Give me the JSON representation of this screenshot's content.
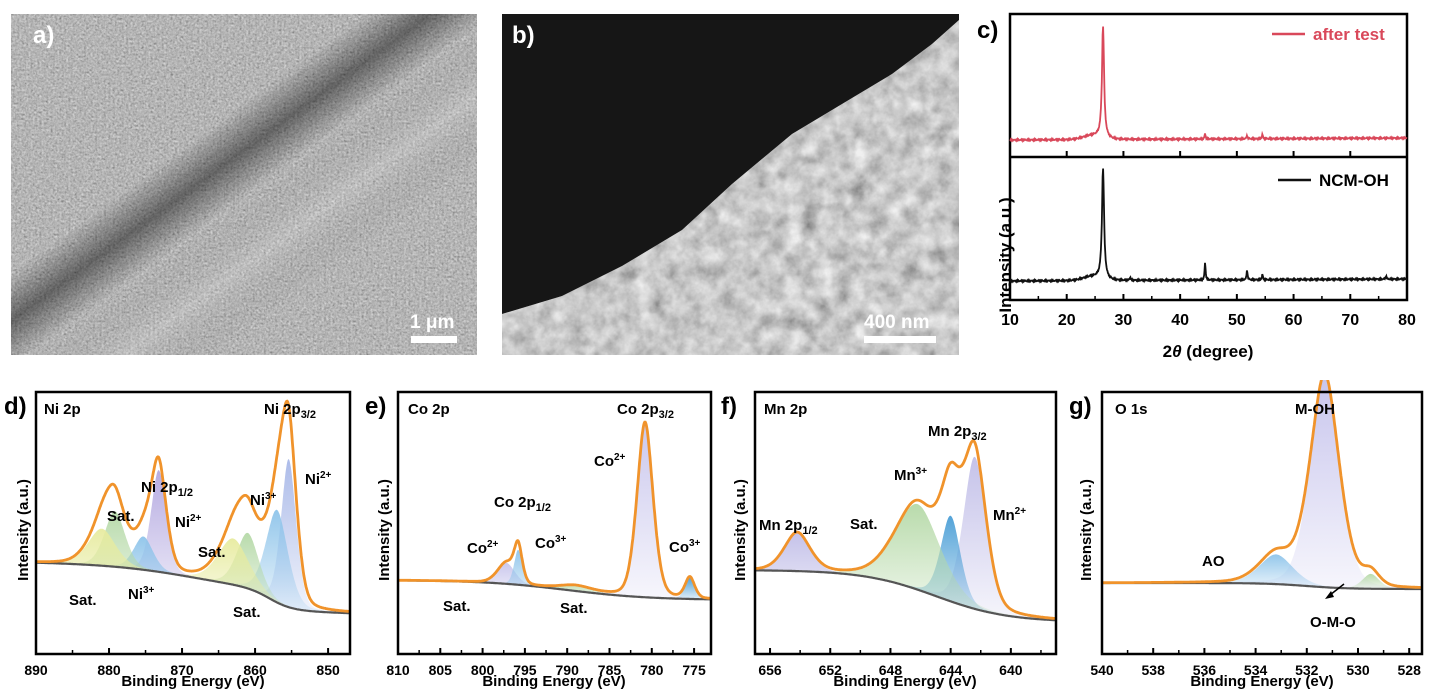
{
  "panels": {
    "a": {
      "label": "a)",
      "scale_label": "1 μm"
    },
    "b": {
      "label": "b)",
      "scale_label": "400 nm"
    },
    "c": {
      "label": "c)",
      "ylabel": "Intensity (a.u.)",
      "xlabel_prefix": "2",
      "xlabel_theta": "θ",
      "xlabel_suffix": " (degree)",
      "legend_top": "after test",
      "legend_bottom": "NCM-OH"
    },
    "d": {
      "label": "d)",
      "title": "Ni 2p",
      "xlabel": "Binding Energy (eV)",
      "ylabel": "Intensity (a.u.)"
    },
    "e": {
      "label": "e)",
      "title": "Co 2p",
      "xlabel": "Binding Energy (eV)",
      "ylabel": "Intensity (a.u.)"
    },
    "f": {
      "label": "f)",
      "title": "Mn 2p",
      "xlabel": "Binding Energy (eV)",
      "ylabel": "Intensity (a.u.)"
    },
    "g": {
      "label": "g)",
      "title": "O 1s",
      "xlabel": "Binding Energy (eV)",
      "ylabel": "Intensity (a.u.)"
    }
  },
  "colors": {
    "after_test": "#d9485a",
    "ncm_oh": "#111111",
    "envelope": "#f0932b",
    "background": "#555555"
  },
  "chart_data": [
    {
      "id": "c",
      "type": "line",
      "xlabel": "2θ (degree)",
      "ylabel": "Intensity (a.u.)",
      "xlim": [
        10,
        80
      ],
      "xticks": [
        10,
        20,
        30,
        40,
        50,
        60,
        70,
        80
      ],
      "series": [
        {
          "name": "after test",
          "peaks": [
            [
              26.4,
              1.0
            ],
            [
              44.4,
              0.05
            ],
            [
              51.8,
              0.03
            ],
            [
              54.5,
              0.04
            ]
          ]
        },
        {
          "name": "NCM-OH",
          "peaks": [
            [
              26.4,
              1.0
            ],
            [
              31.2,
              0.03
            ],
            [
              44.4,
              0.16
            ],
            [
              51.8,
              0.09
            ],
            [
              54.5,
              0.05
            ],
            [
              76.3,
              0.03
            ]
          ]
        }
      ]
    },
    {
      "id": "d",
      "type": "line",
      "title": "Ni 2p",
      "xlabel": "Binding Energy (eV)",
      "ylabel": "Intensity (a.u.)",
      "xlim": [
        890,
        847
      ],
      "xticks": [
        890,
        880,
        870,
        860,
        850
      ],
      "annotations": [
        "Ni 2p1/2",
        "Ni 2p3/2",
        "Ni2+",
        "Ni2+",
        "Ni3+",
        "Ni3+",
        "Sat.",
        "Sat.",
        "Sat.",
        "Sat."
      ],
      "series": [
        {
          "name": "Ni 2p3/2 Ni2+",
          "center": 855.4,
          "height": 0.8,
          "color": "#a8b8e8"
        },
        {
          "name": "Ni 2p3/2 Ni3+",
          "center": 857.0,
          "height": 0.5,
          "color": "#8ec4ea"
        },
        {
          "name": "Sat.",
          "center": 861.0,
          "height": 0.3,
          "color": "#b5d9a7"
        },
        {
          "name": "Sat.",
          "center": 863.0,
          "height": 0.25,
          "color": "#e7eb9f"
        },
        {
          "name": "Ni 2p1/2 Ni2+",
          "center": 873.2,
          "height": 0.55,
          "color": "#b3a8e0"
        },
        {
          "name": "Ni 2p1/2 Ni3+",
          "center": 875.3,
          "height": 0.18,
          "color": "#8ec4ea"
        },
        {
          "name": "Sat.",
          "center": 879.2,
          "height": 0.3,
          "color": "#b5d9a7"
        },
        {
          "name": "Sat.",
          "center": 881.0,
          "height": 0.2,
          "color": "#e7eb9f"
        }
      ]
    },
    {
      "id": "e",
      "type": "line",
      "title": "Co 2p",
      "xlabel": "Binding Energy (eV)",
      "ylabel": "Intensity (a.u.)",
      "xlim": [
        810,
        773
      ],
      "xticks": [
        810,
        805,
        800,
        795,
        790,
        785,
        780,
        775
      ],
      "annotations": [
        "Co 2p3/2",
        "Co 2p1/2",
        "Co2+",
        "Co2+",
        "Co3+",
        "Co3+",
        "Sat.",
        "Sat."
      ],
      "series": [
        {
          "name": "Co 2p3/2 Co2+",
          "center": 780.8,
          "height": 1.0,
          "color": "#c8c5ec"
        },
        {
          "name": "Co 2p3/2 Co3+",
          "center": 775.5,
          "height": 0.12,
          "color": "#4a9ed6"
        },
        {
          "name": "Co 2p1/2 Co2+",
          "center": 797.2,
          "height": 0.12,
          "color": "#c8c5ec"
        },
        {
          "name": "Co 2p1/2 Co3+",
          "center": 795.8,
          "height": 0.2,
          "color": "#8ec4ea"
        },
        {
          "name": "Sat.",
          "center": 789.0,
          "height": 0.03,
          "color": "#b5d9a7"
        }
      ]
    },
    {
      "id": "f",
      "type": "line",
      "title": "Mn 2p",
      "xlabel": "Binding Energy (eV)",
      "ylabel": "Intensity (a.u.)",
      "xlim": [
        657,
        637
      ],
      "xticks": [
        656,
        652,
        648,
        644,
        640
      ],
      "annotations": [
        "Mn 2p3/2",
        "Mn 2p1/2",
        "Mn3+",
        "Mn2+",
        "Sat."
      ],
      "series": [
        {
          "name": "Mn 2p3/2 Mn2+",
          "center": 642.4,
          "height": 0.8,
          "color": "#c2bfe8"
        },
        {
          "name": "Mn 2p3/2 Mn3+",
          "center": 644.0,
          "height": 0.45,
          "color": "#4a9ed6"
        },
        {
          "name": "Sat.",
          "center": 646.2,
          "height": 0.45,
          "color": "#b5d9a7"
        },
        {
          "name": "Mn 2p1/2",
          "center": 654.2,
          "height": 0.2,
          "color": "#c2bfe8"
        }
      ]
    },
    {
      "id": "g",
      "type": "line",
      "title": "O 1s",
      "xlabel": "Binding Energy (eV)",
      "ylabel": "Intensity (a.u.)",
      "xlim": [
        540,
        527.5
      ],
      "xticks": [
        540,
        538,
        536,
        534,
        532,
        530,
        528
      ],
      "annotations": [
        "M-OH",
        "AO",
        "O-M-O"
      ],
      "series": [
        {
          "name": "M-OH",
          "center": 531.3,
          "height": 1.0,
          "color": "#c5c2ec"
        },
        {
          "name": "AO",
          "center": 533.2,
          "height": 0.14,
          "color": "#8ec4ea"
        },
        {
          "name": "O-M-O",
          "center": 529.5,
          "height": 0.07,
          "color": "#b5d9a7"
        }
      ]
    }
  ]
}
